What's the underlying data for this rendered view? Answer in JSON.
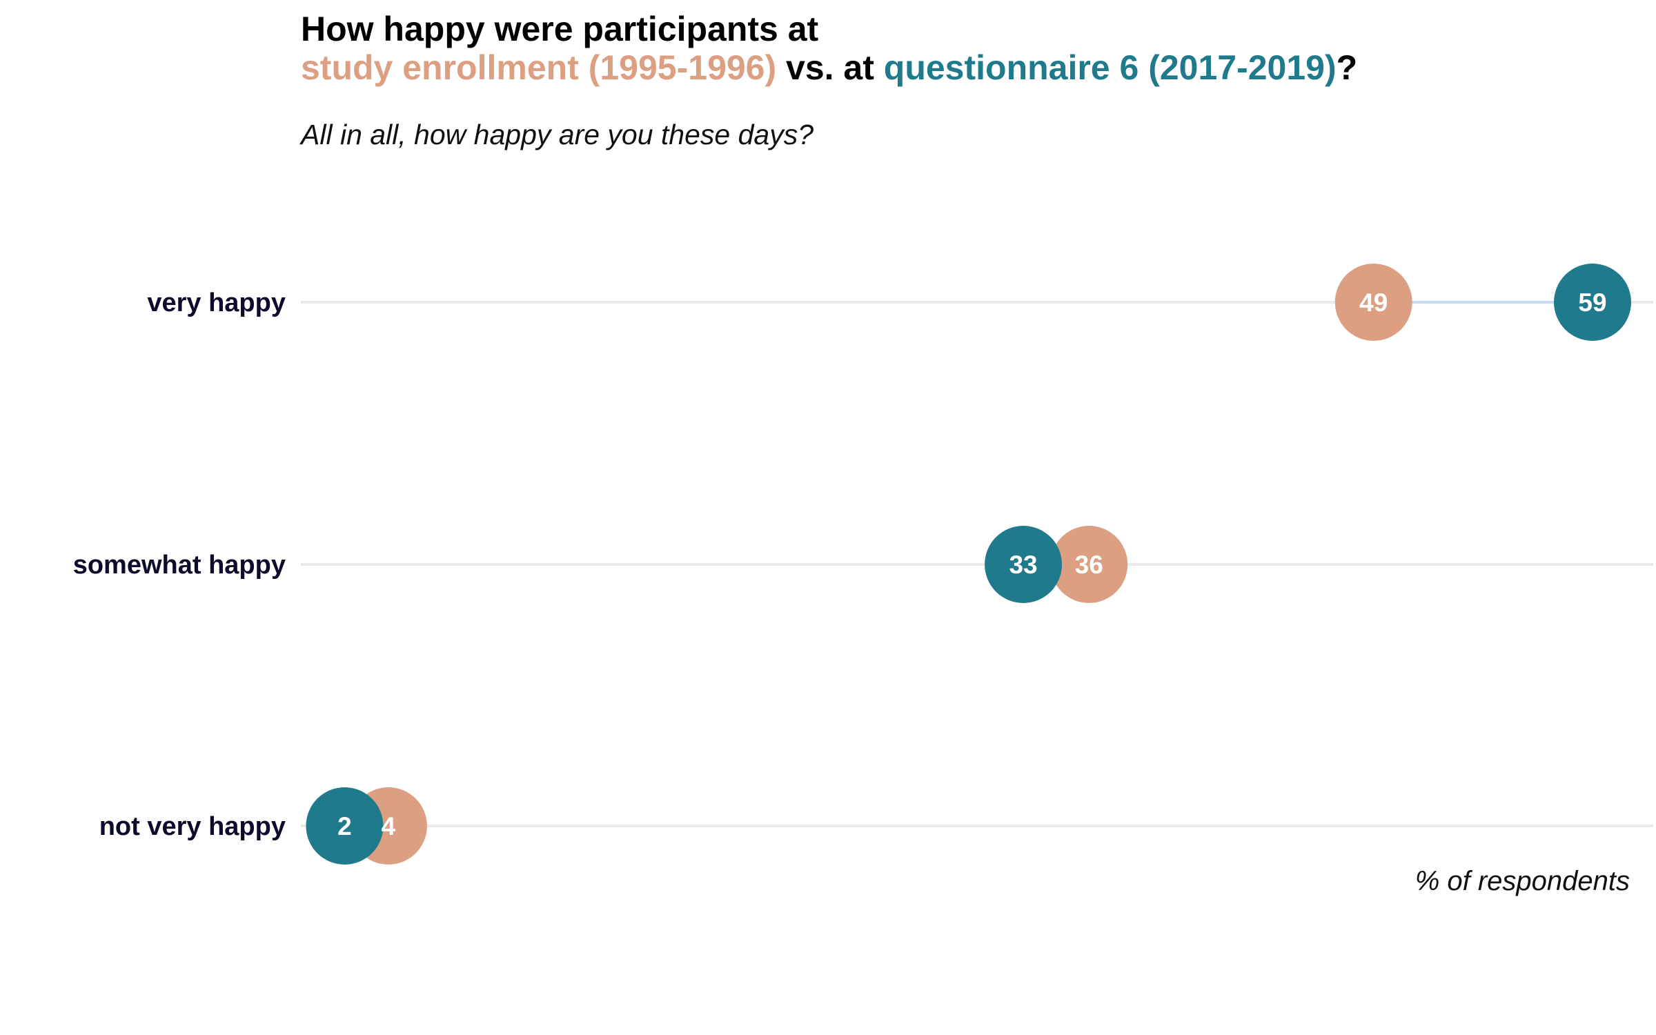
{
  "title": {
    "line1": "How happy were participants at",
    "series_a_label": "study enrollment (1995-1996)",
    "mid": " vs. at ",
    "series_b_label": "questionnaire 6 (2017-2019)",
    "end": "?"
  },
  "subtitle": "All in all, how happy are you these days?",
  "colors": {
    "enrollment": "#dd9f82",
    "questionnaire6": "#1f7a8c",
    "gridline": "#ebebeb",
    "connector": "#c6dafc"
  },
  "chart_data": {
    "type": "dumbbell",
    "categories": [
      "very happy",
      "somewhat happy",
      "not very happy"
    ],
    "series": [
      {
        "key": "enrollment",
        "values": [
          49,
          36,
          4
        ]
      },
      {
        "key": "questionnaire6",
        "values": [
          59,
          33,
          2
        ]
      }
    ],
    "xlim": [
      0,
      61
    ],
    "x_note": "% of respondents",
    "legend": "in title (colored text)",
    "grid": "horizontal gridlines per category"
  }
}
